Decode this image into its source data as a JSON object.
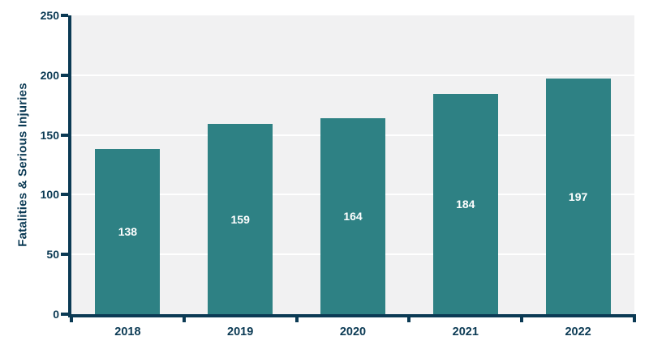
{
  "chart_data": {
    "type": "bar",
    "categories": [
      "2018",
      "2019",
      "2020",
      "2021",
      "2022"
    ],
    "values": [
      138,
      159,
      164,
      184,
      197
    ],
    "bar_value_labels": [
      "138",
      "159",
      "164",
      "184",
      "197"
    ],
    "ylabel": "Fatalities & Serious Injuries",
    "ylim": [
      0,
      250
    ],
    "yticks": [
      0,
      50,
      100,
      150,
      200,
      250
    ],
    "ytick_labels": [
      "0",
      "50",
      "100",
      "150",
      "200",
      "250"
    ],
    "grid": {
      "horizontal": true,
      "vertical": false
    },
    "legend": {
      "visible": false
    },
    "colors": {
      "bar": "#2E8184",
      "axis_and_text": "#0B3A54",
      "plot_background": "#F1F1F2",
      "gridline": "#FFFFFF",
      "bar_label_text": "#FFFFFF",
      "page_background": "#FFFFFF"
    }
  }
}
